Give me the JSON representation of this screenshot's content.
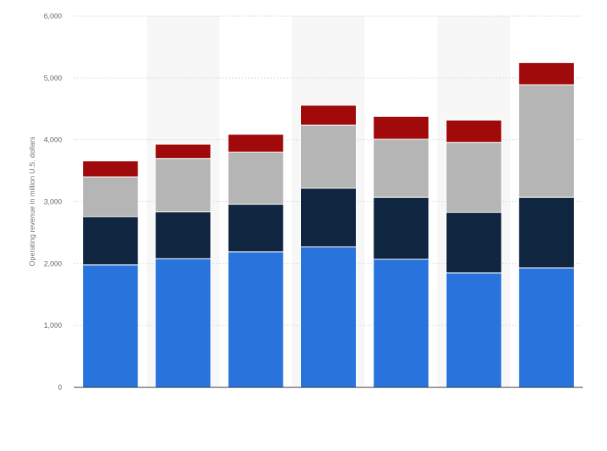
{
  "chart_data": {
    "type": "bar",
    "stacked": true,
    "categories": [
      "",
      "",
      "",
      "",
      "",
      "",
      ""
    ],
    "series": [
      {
        "values": [
          1980,
          2080,
          2190,
          2270,
          2070,
          1850,
          1930
        ],
        "color": "#2873dc"
      },
      {
        "values": [
          780,
          760,
          770,
          950,
          1000,
          980,
          1140
        ],
        "color": "#10253f"
      },
      {
        "values": [
          640,
          860,
          840,
          1020,
          940,
          1130,
          1820
        ],
        "color": "#b5b5b5"
      },
      {
        "values": [
          260,
          230,
          290,
          320,
          370,
          360,
          360
        ],
        "color": "#a10a0a"
      }
    ],
    "ylabel": "Operating revenue in million U.S. dollars",
    "ylim": [
      0,
      6000
    ],
    "yticks": [
      0,
      1000,
      2000,
      3000,
      4000,
      5000,
      6000
    ],
    "ytick_labels": [
      "0",
      "1,000",
      "2,000",
      "3,000",
      "4,000",
      "5,000",
      "6,000"
    ],
    "grid": true,
    "legend": "none"
  }
}
